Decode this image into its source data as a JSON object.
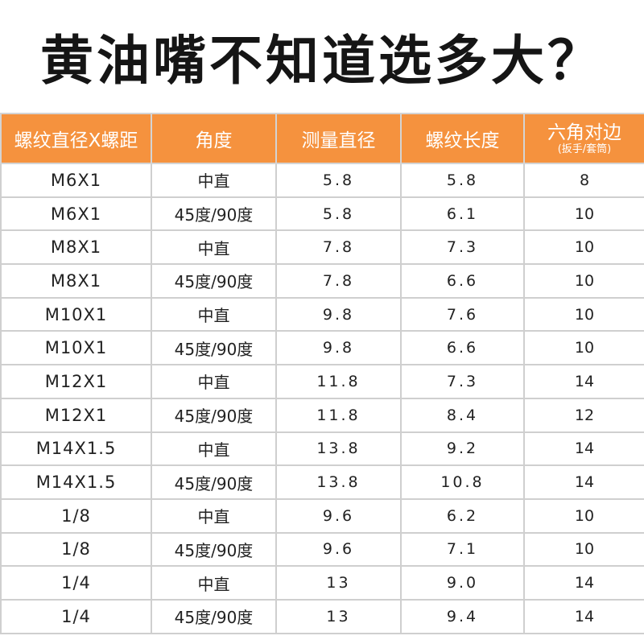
{
  "title": "黄油嘴不知道选多大？",
  "table": {
    "headers": [
      {
        "label": "螺纹直径X螺距",
        "sub": ""
      },
      {
        "label": "角度",
        "sub": ""
      },
      {
        "label": "测量直径",
        "sub": ""
      },
      {
        "label": "螺纹长度",
        "sub": ""
      },
      {
        "label": "六角对边",
        "sub": "(扳手/套筒)"
      }
    ],
    "rows": [
      [
        "M6X1",
        "中直",
        "5.8",
        "5.8",
        "8"
      ],
      [
        "M6X1",
        "45度/90度",
        "5.8",
        "6.1",
        "10"
      ],
      [
        "M8X1",
        "中直",
        "7.8",
        "7.3",
        "10"
      ],
      [
        "M8X1",
        "45度/90度",
        "7.8",
        "6.6",
        "10"
      ],
      [
        "M10X1",
        "中直",
        "9.8",
        "7.6",
        "10"
      ],
      [
        "M10X1",
        "45度/90度",
        "9.8",
        "6.6",
        "10"
      ],
      [
        "M12X1",
        "中直",
        "11.8",
        "7.3",
        "14"
      ],
      [
        "M12X1",
        "45度/90度",
        "11.8",
        "8.4",
        "12"
      ],
      [
        "M14X1.5",
        "中直",
        "13.8",
        "9.2",
        "14"
      ],
      [
        "M14X1.5",
        "45度/90度",
        "13.8",
        "10.8",
        "14"
      ],
      [
        "1/8",
        "中直",
        "9.6",
        "6.2",
        "10"
      ],
      [
        "1/8",
        "45度/90度",
        "9.6",
        "7.1",
        "10"
      ],
      [
        "1/4",
        "中直",
        "13",
        "9.0",
        "14"
      ],
      [
        "1/4",
        "45度/90度",
        "13",
        "9.4",
        "14"
      ]
    ]
  },
  "colors": {
    "header_bg": "#f5923e",
    "header_text": "#ffffff",
    "title_text": "#151515",
    "grid": "#cfcfcf"
  }
}
